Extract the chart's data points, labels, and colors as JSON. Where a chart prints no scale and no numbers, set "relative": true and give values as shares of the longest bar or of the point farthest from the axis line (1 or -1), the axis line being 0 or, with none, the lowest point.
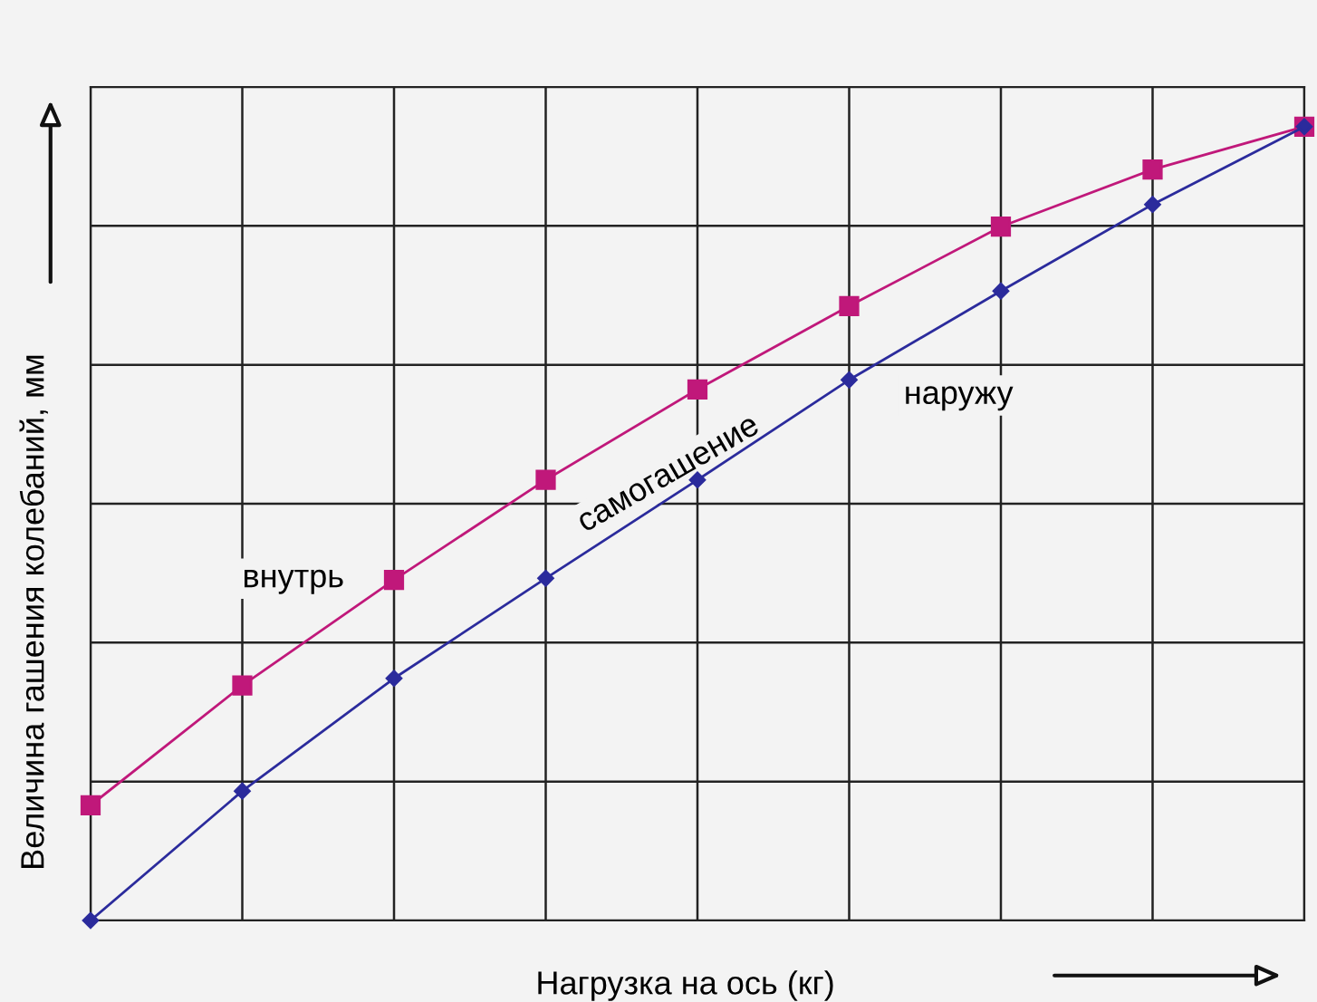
{
  "chart_data": {
    "type": "line",
    "relative": true,
    "xlabel": "Нагрузка на ось (кг)",
    "ylabel": "Величина гашения колебаний, мм",
    "categories": [
      null,
      null,
      null,
      null,
      null,
      null,
      null,
      null,
      null
    ],
    "series": [
      {
        "color": "#c0187a",
        "marker": "square",
        "values": [
          0.145,
          0.296,
          0.429,
          0.555,
          0.669,
          0.774,
          0.874,
          0.946,
          1.0
        ]
      },
      {
        "color": "#2b2b9c",
        "marker": "diamond",
        "values": [
          0,
          0.163,
          0.305,
          0.431,
          0.555,
          0.681,
          0.793,
          0.902,
          1.0
        ]
      }
    ],
    "annotations": [
      "внутрь",
      "самогашение",
      "наружу"
    ],
    "grid": true,
    "line_style": "solid"
  }
}
